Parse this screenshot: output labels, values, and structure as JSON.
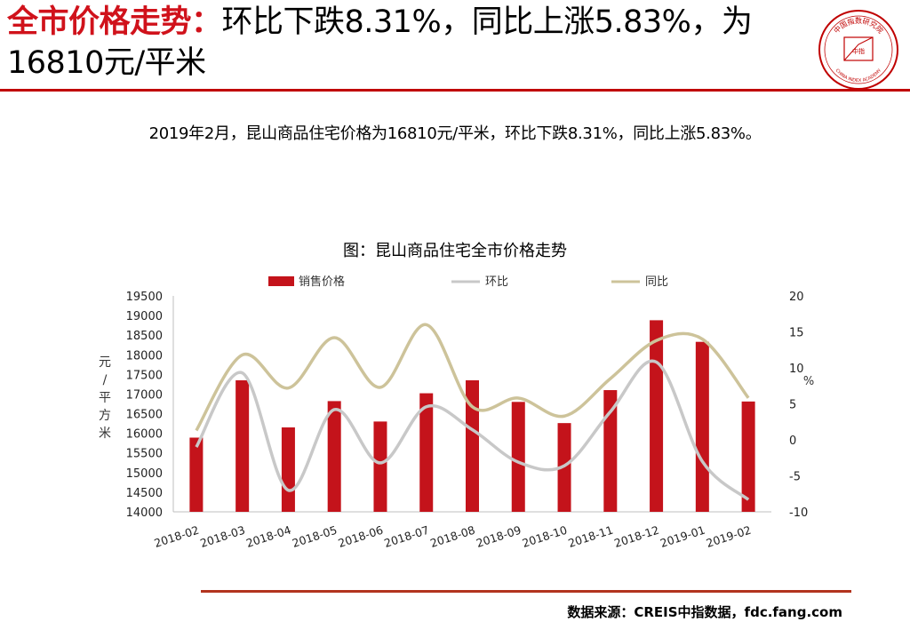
{
  "header": {
    "title_highlight": "全市价格走势：",
    "title_rest": "环比下跌8.31%，同比上涨5.83%，为16810元/平米",
    "logo": {
      "arc_text": "中国指数研究院",
      "center_text": "中指",
      "english_text": "CHINA INDEX ACADEMY"
    }
  },
  "summary": "2019年2月，昆山商品住宅价格为16810元/平米，环比下跌8.31%，同比上涨5.83%。",
  "chart_caption": "图：昆山商品住宅全市价格走势",
  "footer": {
    "source": "数据来源：CREIS中指数据，fdc.fang.com"
  },
  "colors": {
    "accent": "#c00000",
    "bar": "#c4131b",
    "mom_line": "#c8c8c8",
    "yoy_line": "#cdc39a",
    "footer_rule": "#b2331e"
  },
  "chart_data": {
    "type": "bar",
    "title": "图：昆山商品住宅全市价格走势",
    "categories": [
      "2018-02",
      "2018-03",
      "2018-04",
      "2018-05",
      "2018-06",
      "2018-07",
      "2018-08",
      "2018-09",
      "2018-10",
      "2018-11",
      "2018-12",
      "2019-01",
      "2019-02"
    ],
    "series": [
      {
        "name": "销售价格",
        "type": "bar",
        "axis": "left",
        "values": [
          15890,
          17350,
          16150,
          16820,
          16300,
          17020,
          17350,
          16800,
          16260,
          17100,
          18880,
          18330,
          16810
        ]
      },
      {
        "name": "环比",
        "type": "line",
        "axis": "right",
        "values": [
          -1.0,
          9.3,
          -7.0,
          4.2,
          -3.2,
          4.6,
          1.4,
          -3.1,
          -3.6,
          3.9,
          10.8,
          -3.0,
          -8.31
        ]
      },
      {
        "name": "同比",
        "type": "line",
        "axis": "right",
        "values": [
          1.3,
          11.8,
          7.2,
          14.2,
          7.3,
          16.0,
          4.6,
          5.8,
          3.3,
          8.5,
          13.8,
          14.0,
          5.83
        ]
      }
    ],
    "ylabel_left": "元/平方米",
    "ylabel_right": "%",
    "ylim_left": [
      14000,
      19500
    ],
    "yticks_left": [
      14000,
      14500,
      15000,
      15500,
      16000,
      16500,
      17000,
      17500,
      18000,
      18500,
      19000,
      19500
    ],
    "ylim_right": [
      -10,
      20
    ],
    "yticks_right": [
      -10,
      -5,
      0,
      5,
      10,
      15,
      20
    ],
    "legend_position": "top",
    "grid": false
  }
}
